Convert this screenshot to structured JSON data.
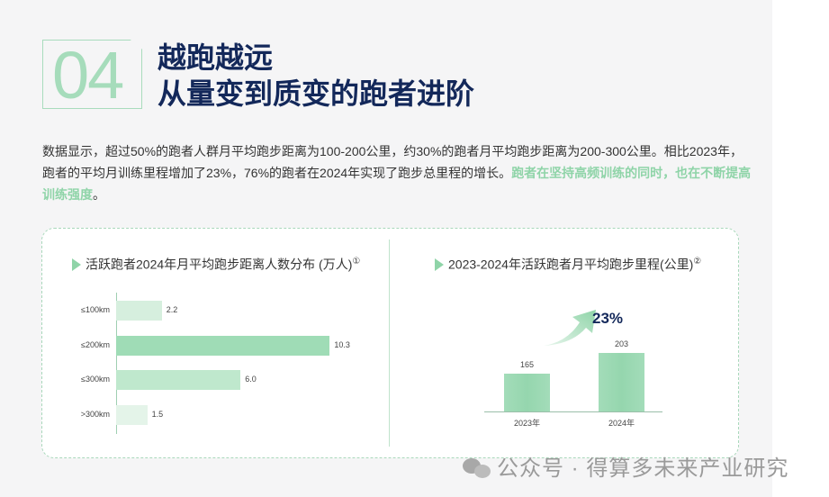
{
  "section": {
    "number": "04",
    "title_line1": "越跑越远",
    "title_line2": "从量变到质变的跑者进阶"
  },
  "body": {
    "text": "数据显示，超过50%的跑者人群月平均跑步距离为100-200公里，约30%的跑者月平均跑步距离为200-300公里。相比2023年，跑者的平均月训练里程增加了23%，76%的跑者在2024年实现了跑步总里程的增长。",
    "highlight": "跑者在坚持高频训练的同时，也在不断提高训练强度",
    "end": "。"
  },
  "colors": {
    "accent": "#8fd4a8",
    "navy": "#13285a"
  },
  "chart_data": [
    {
      "type": "bar",
      "orientation": "horizontal",
      "title": "活跃跑者2024年月平均跑步距离人数分布 (万人)",
      "note": "①",
      "categories": [
        "≤100km",
        "≤200km",
        "≤300km",
        ">300km"
      ],
      "values": [
        2.2,
        10.3,
        6.0,
        1.5
      ],
      "labels": [
        "2.2",
        "10.3",
        "6.0",
        "1.5"
      ],
      "xlim": [
        0,
        11.5
      ],
      "colors": [
        "#d6efde",
        "#9fdcb6",
        "#bfe8cd",
        "#e4f4e9"
      ]
    },
    {
      "type": "bar",
      "title": "2023-2024年活跃跑者月平均跑步里程(公里)",
      "note": "②",
      "categories": [
        "2023年",
        "2024年"
      ],
      "values": [
        165,
        203
      ],
      "labels": [
        "165",
        "203"
      ],
      "ylim": [
        95,
        215
      ],
      "growth": "23%"
    }
  ],
  "watermark": "公众号 · 得算多未来产业研究"
}
